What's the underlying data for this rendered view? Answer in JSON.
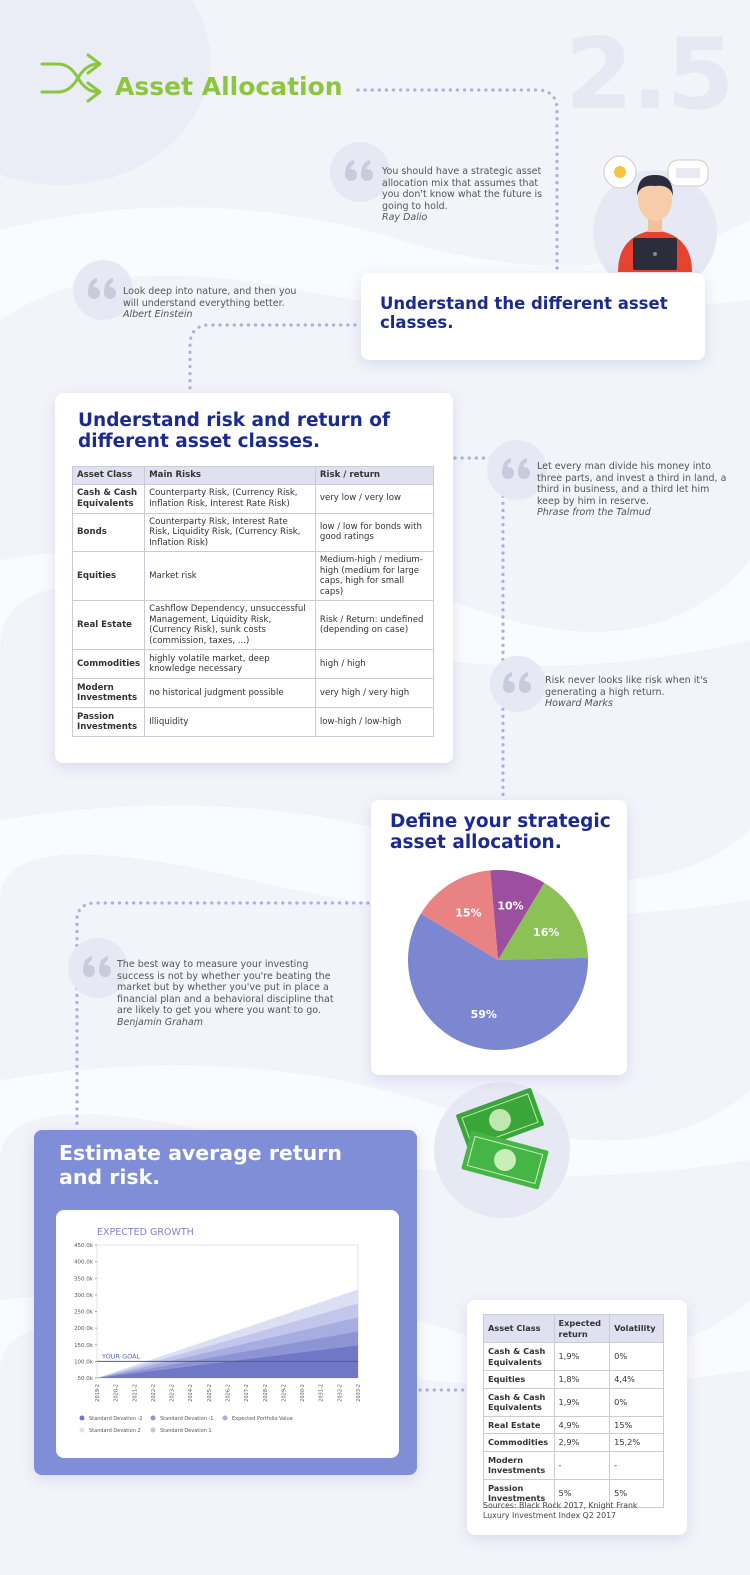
{
  "header": {
    "title": "Asset Allocation",
    "number": "2.5"
  },
  "quotes": [
    {
      "text": "You should have a strategic asset allocation mix that assumes that you don't know what the future is going to hold.",
      "author": "Ray Dalio"
    },
    {
      "text": "Look deep into nature, and then you will understand everything better.",
      "author": "Albert Einstein"
    },
    {
      "text": "Let every man divide his money into three parts, and invest a third in land, a third in business, and a third let him keep by him in reserve.",
      "author": "Phrase from the Talmud"
    },
    {
      "text": "Risk never looks like risk when it's generating a high return.",
      "author": "Howard Marks"
    },
    {
      "text": "The best way to measure your investing success is not by whether you're beating the market but by whether you've put in place a financial plan and a behavioral discipline that are likely to get you where you want to go.",
      "author": "Benjamin Graham"
    }
  ],
  "steps": [
    {
      "title": "Understand the different asset classes."
    },
    {
      "title": "Understand risk and return of different asset classes.",
      "table": {
        "header": [
          "Asset Class",
          "Main Risks",
          "Risk / return"
        ],
        "rows": [
          [
            "Cash & Cash Equivalents",
            "Counterparty Risk, (Currency Risk, Inflation Risk, Interest Rate Risk)",
            "very low / very low"
          ],
          [
            "Bonds",
            "Counterparty Risk, Interest Rate Risk, Liquidity Risk, (Currency Risk, Inflation Risk)",
            "low / low for bonds with good ratings"
          ],
          [
            "Equities",
            "Market risk",
            "Medium-high / medium-high (medium for large caps, high for small caps)"
          ],
          [
            "Real Estate",
            "Cashflow Dependency, unsuccessful Management, Liquidity Risk, (Currency Risk), sunk costs (commission, taxes, ...)",
            "Risk / Return: undefined (depending on case)"
          ],
          [
            "Commodities",
            "highly volatile market, deep knowledge necessary",
            "high / high"
          ],
          [
            "Modern Investments",
            "no historical judgment possible",
            "very high / very high"
          ],
          [
            "Passion Investments",
            "Illiquidity",
            "low-high / low-high"
          ]
        ]
      }
    },
    {
      "title": "Define your strategic asset allocation."
    },
    {
      "title": "Estimate average return and risk."
    }
  ],
  "return_table": {
    "header": [
      "Asset Class",
      "Expected return",
      "Volatility"
    ],
    "rows": [
      [
        "Cash & Cash Equivalents",
        "1,9%",
        "0%"
      ],
      [
        "Equities",
        "1,8%",
        "4,4%"
      ],
      [
        "Cash & Cash Equivalents",
        "1,9%",
        "0%"
      ],
      [
        "Real Estate",
        "4,9%",
        "15%"
      ],
      [
        "Commodities",
        "2,9%",
        "15,2%"
      ],
      [
        "Modern Investments",
        "-",
        "-"
      ],
      [
        "Passion Investments",
        "5%",
        "5%"
      ]
    ],
    "source": "Sources: Black Rock 2017, Knight Frank Luxury Investment Index Q2 2017"
  },
  "chart_data": [
    {
      "type": "pie",
      "values": [
        10,
        16,
        59,
        15
      ],
      "value_labels": [
        "10%",
        "16%",
        "59%",
        "15%"
      ],
      "colors": [
        "#9b4f9e",
        "#8bc155",
        "#7b87d1",
        "#e98383"
      ]
    },
    {
      "type": "area",
      "title": "EXPECTED GROWTH",
      "categories": [
        "2019-2",
        "2020-2",
        "2021-2",
        "2022-2",
        "2023-2",
        "2024-2",
        "2025-2",
        "2026-2",
        "2027-2",
        "2028-2",
        "2029-2",
        "2030-2",
        "2031-2",
        "2032-2",
        "2033-2"
      ],
      "ylim": [
        50000,
        450000
      ],
      "yticks": [
        {
          "value": 50000,
          "label": "50.0k"
        },
        {
          "value": 100000,
          "label": "100.0k"
        },
        {
          "value": 150000,
          "label": "150.0k"
        },
        {
          "value": 200000,
          "label": "200.0k"
        },
        {
          "value": 250000,
          "label": "250.0k"
        },
        {
          "value": 300000,
          "label": "300.0k"
        },
        {
          "value": 350000,
          "label": "350.0k"
        },
        {
          "value": 400000,
          "label": "400.0k"
        },
        {
          "value": 450000,
          "label": "450.0k"
        }
      ],
      "annotation": {
        "label": "YOUR GOAL",
        "value": 100000
      },
      "series": [
        {
          "name": "Standard Devation -2",
          "color": "#6f77c6",
          "values": [
            50000,
            57000,
            64000,
            71000,
            78000,
            85000,
            92000,
            99000,
            106000,
            113000,
            120000,
            127000,
            134000,
            141000,
            148000
          ]
        },
        {
          "name": "Standard Devation -1",
          "color": "#8d94d4",
          "values": [
            50000,
            60000,
            70000,
            80000,
            90000,
            100000,
            110000,
            120000,
            130000,
            140000,
            150000,
            160000,
            170000,
            180000,
            190000
          ]
        },
        {
          "name": "Expected Portfolio Value",
          "color": "#a7ade0",
          "values": [
            50000,
            63000,
            76000,
            89000,
            102000,
            115000,
            128000,
            141000,
            154000,
            167000,
            180000,
            193000,
            206000,
            219000,
            232000
          ]
        },
        {
          "name": "Standard Devation 2",
          "color": "#dcdff3",
          "values": [
            50000,
            69000,
            88000,
            107000,
            126000,
            145000,
            164000,
            183000,
            202000,
            221000,
            240000,
            259000,
            278000,
            297000,
            316000
          ]
        },
        {
          "name": "Standard Devation 1",
          "color": "#c2c6ea",
          "values": [
            50000,
            66000,
            82000,
            98000,
            114000,
            130000,
            146000,
            162000,
            178000,
            194000,
            210000,
            226000,
            242000,
            258000,
            274000
          ]
        }
      ]
    }
  ]
}
